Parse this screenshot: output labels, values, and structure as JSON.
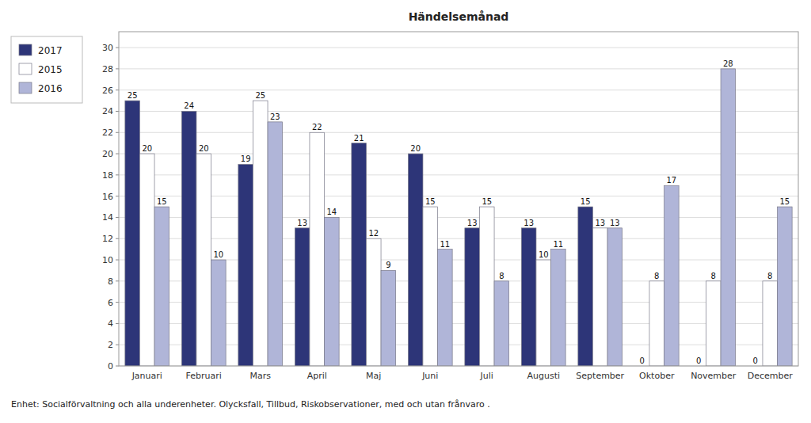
{
  "chart_data": {
    "type": "bar",
    "title": "Händelsemånad",
    "categories": [
      "Januari",
      "Februari",
      "Mars",
      "April",
      "Maj",
      "Juni",
      "Juli",
      "Augusti",
      "September",
      "Oktober",
      "November",
      "December"
    ],
    "series": [
      {
        "name": "2017",
        "color": "#2d3578",
        "values": [
          25,
          24,
          19,
          13,
          21,
          20,
          13,
          13,
          15,
          0,
          0,
          0
        ]
      },
      {
        "name": "2015",
        "color": "#ffffff",
        "values": [
          20,
          20,
          25,
          22,
          12,
          15,
          15,
          10,
          13,
          8,
          8,
          8
        ]
      },
      {
        "name": "2016",
        "color": "#b0b5d8",
        "values": [
          15,
          10,
          23,
          14,
          9,
          11,
          8,
          11,
          13,
          17,
          28,
          15
        ]
      }
    ],
    "ylim": [
      0,
      31.5
    ],
    "yticks": [
      0,
      2,
      4,
      6,
      8,
      10,
      12,
      14,
      16,
      18,
      20,
      22,
      24,
      26,
      28,
      30
    ],
    "grid": true,
    "legend": "upper left",
    "data_labels": true,
    "annotations": [
      "Enhet: Socialförvaltning och alla underenheter. Olycksfall, Tillbud, Riskobservationer, med och utan frånvaro ."
    ]
  }
}
